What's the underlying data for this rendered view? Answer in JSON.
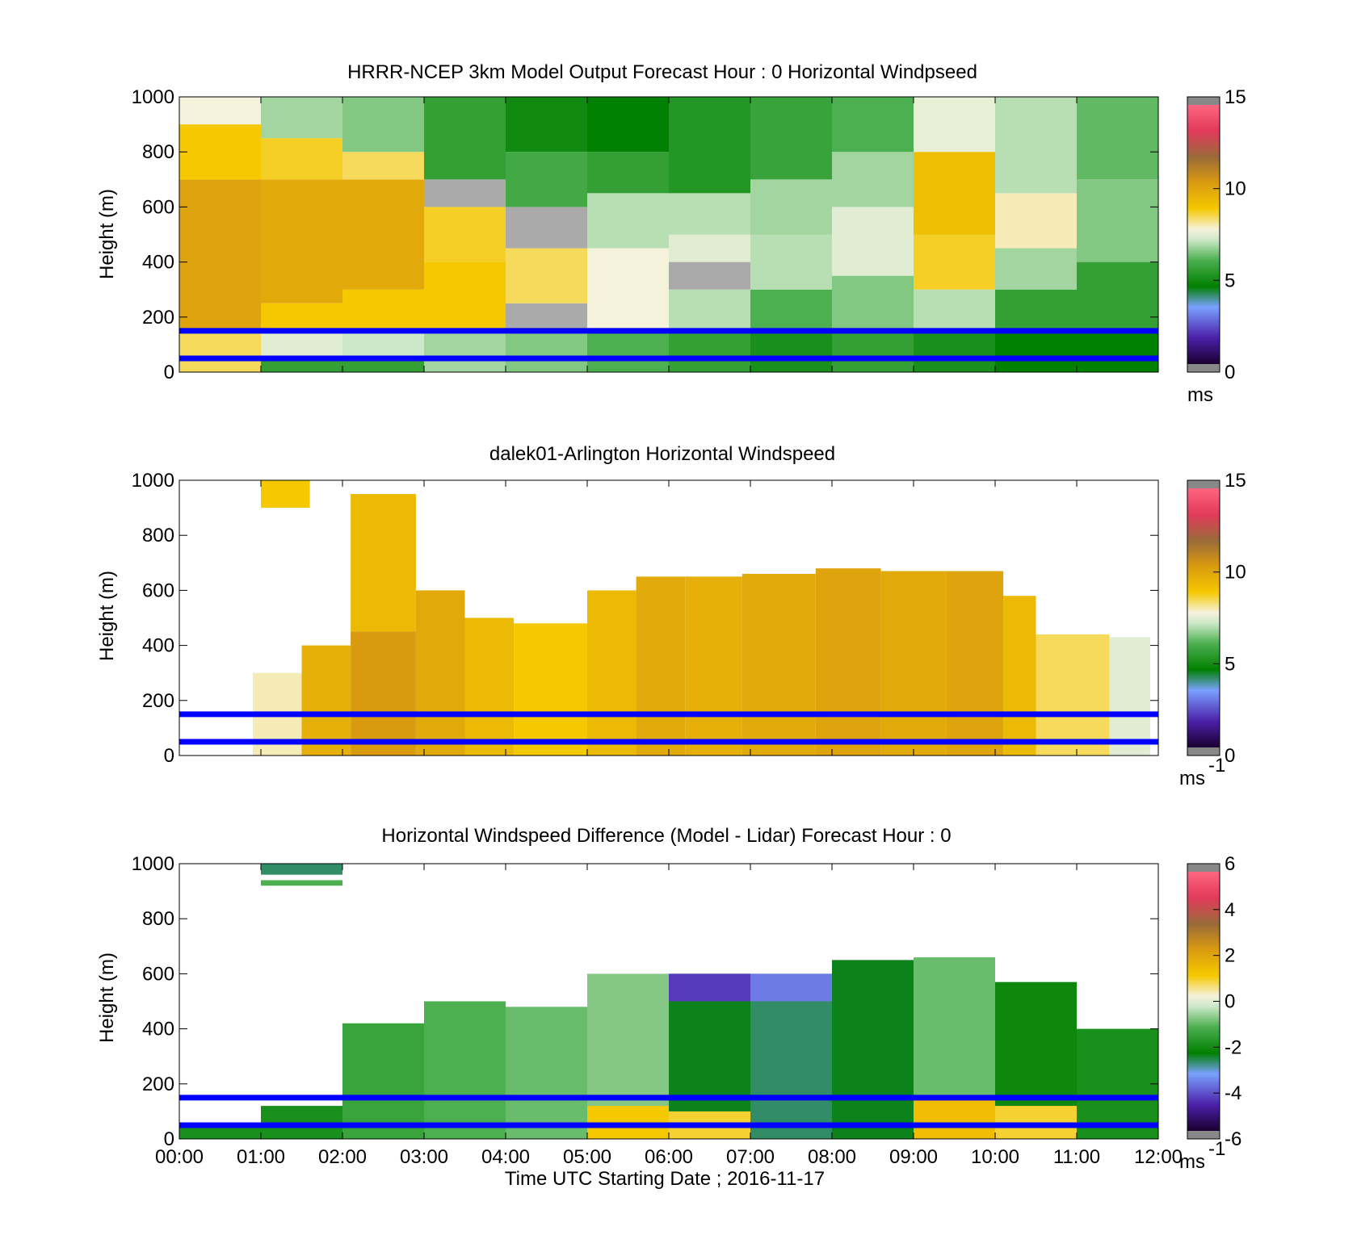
{
  "figure": {
    "xlabel": "Time UTC  Starting Date ; 2016-11-17"
  },
  "chart_data": [
    {
      "type": "heatmap",
      "title": "HRRR-NCEP 3km Model Output   Forecast Hour : 0 Horizontal Windpseed",
      "ylabel": "Height (m)",
      "ylim": [
        0,
        1000
      ],
      "yticks": [
        "0",
        "200",
        "400",
        "600",
        "800",
        "1000"
      ],
      "xlim": [
        0,
        12
      ],
      "x_ticklabels": [],
      "colorbar": {
        "min": 0,
        "max": 15,
        "ticks": [
          "0",
          "5",
          "10",
          "15"
        ],
        "unit": "ms",
        "exponent": "",
        "scale": "speed"
      },
      "reference_lines_m": [
        150,
        50
      ],
      "reference_line_color": "#0000ff",
      "cells": [
        [
          [
            0,
            1,
            0,
            150,
            8.5
          ],
          [
            0,
            1,
            150,
            700,
            10.2
          ],
          [
            0,
            1,
            700,
            900,
            9
          ],
          [
            0,
            1,
            900,
            1000,
            7.8
          ],
          [
            1,
            2,
            0,
            50,
            5.5
          ],
          [
            1,
            2,
            50,
            150,
            7.5
          ],
          [
            1,
            2,
            150,
            250,
            9
          ],
          [
            1,
            2,
            250,
            700,
            10
          ],
          [
            1,
            2,
            700,
            850,
            8.8
          ],
          [
            1,
            2,
            850,
            1000,
            6.8
          ],
          [
            2,
            3,
            0,
            50,
            5.5
          ],
          [
            2,
            3,
            50,
            150,
            7.2
          ],
          [
            2,
            3,
            150,
            300,
            9
          ],
          [
            2,
            3,
            300,
            700,
            10
          ],
          [
            2,
            3,
            700,
            800,
            8.5
          ],
          [
            2,
            3,
            800,
            1000,
            6.5
          ],
          [
            3,
            4,
            0,
            150,
            6.8
          ],
          [
            3,
            4,
            150,
            400,
            9
          ],
          [
            3,
            4,
            400,
            600,
            8.8
          ],
          [
            3,
            4,
            600,
            700,
            0
          ],
          [
            3,
            4,
            700,
            1000,
            5.5
          ],
          [
            4,
            5,
            0,
            150,
            6.5
          ],
          [
            4,
            5,
            150,
            250,
            0
          ],
          [
            4,
            5,
            250,
            450,
            8.5
          ],
          [
            4,
            5,
            450,
            600,
            0
          ],
          [
            4,
            5,
            600,
            800,
            5.8
          ],
          [
            4,
            5,
            800,
            1000,
            4.8
          ],
          [
            5,
            6,
            0,
            150,
            6
          ],
          [
            5,
            6,
            150,
            450,
            7.8
          ],
          [
            5,
            6,
            450,
            650,
            7
          ],
          [
            5,
            6,
            650,
            800,
            5.5
          ],
          [
            5,
            6,
            800,
            1000,
            4.5
          ],
          [
            6,
            7,
            0,
            150,
            5.5
          ],
          [
            6,
            7,
            150,
            300,
            7
          ],
          [
            6,
            7,
            300,
            400,
            0
          ],
          [
            6,
            7,
            400,
            500,
            7.5
          ],
          [
            6,
            7,
            500,
            650,
            7
          ],
          [
            6,
            7,
            650,
            1000,
            5.2
          ],
          [
            7,
            8,
            0,
            150,
            5
          ],
          [
            7,
            8,
            150,
            300,
            6
          ],
          [
            7,
            8,
            300,
            500,
            7
          ],
          [
            7,
            8,
            500,
            700,
            6.8
          ],
          [
            7,
            8,
            700,
            1000,
            5.6
          ],
          [
            8,
            9,
            0,
            150,
            5.5
          ],
          [
            8,
            9,
            150,
            350,
            6.5
          ],
          [
            8,
            9,
            350,
            600,
            7.5
          ],
          [
            8,
            9,
            600,
            800,
            6.8
          ],
          [
            8,
            9,
            800,
            1000,
            6
          ],
          [
            9,
            10,
            0,
            150,
            5
          ],
          [
            9,
            10,
            150,
            300,
            7
          ],
          [
            9,
            10,
            300,
            500,
            8.8
          ],
          [
            9,
            10,
            500,
            800,
            9.3
          ],
          [
            9,
            10,
            800,
            1000,
            7.6
          ],
          [
            10,
            11,
            0,
            150,
            4.5
          ],
          [
            10,
            11,
            150,
            300,
            5.5
          ],
          [
            10,
            11,
            300,
            450,
            6.8
          ],
          [
            10,
            11,
            450,
            650,
            8
          ],
          [
            10,
            11,
            650,
            1000,
            7
          ],
          [
            11,
            12,
            0,
            150,
            4.5
          ],
          [
            11,
            12,
            150,
            400,
            5.5
          ],
          [
            11,
            12,
            400,
            700,
            6.5
          ],
          [
            11,
            12,
            700,
            1000,
            6.2
          ]
        ]
      ]
    },
    {
      "type": "heatmap",
      "title": "dalek01-Arlington  Horizontal Windspeed",
      "ylabel": "Height (m)",
      "ylim": [
        0,
        1000
      ],
      "yticks": [
        "0",
        "200",
        "400",
        "600",
        "800",
        "1000"
      ],
      "xlim": [
        0,
        12
      ],
      "x_ticklabels": [],
      "colorbar": {
        "min": 0,
        "max": 15,
        "ticks": [
          "0",
          "5",
          "10",
          "15"
        ],
        "unit": "ms",
        "exponent": "-1",
        "scale": "speed"
      },
      "reference_lines_m": [
        150,
        50
      ],
      "reference_line_color": "#0000ff",
      "cells": [
        [
          [
            0.9,
            1.5,
            0,
            300,
            8
          ],
          [
            1.5,
            2.1,
            0,
            400,
            9.8
          ],
          [
            2.1,
            2.9,
            0,
            450,
            10.5
          ],
          [
            2.9,
            3.5,
            0,
            600,
            10
          ],
          [
            3.5,
            4.1,
            0,
            500,
            9.5
          ],
          [
            4.1,
            5,
            0,
            480,
            9
          ],
          [
            5,
            5.6,
            0,
            600,
            9.5
          ],
          [
            5.6,
            6.2,
            0,
            650,
            10
          ],
          [
            6.2,
            6.9,
            0,
            650,
            9.8
          ],
          [
            6.9,
            7.8,
            0,
            660,
            10
          ],
          [
            7.8,
            8.6,
            0,
            680,
            10.2
          ],
          [
            8.6,
            9.4,
            0,
            670,
            10
          ],
          [
            9.4,
            10.1,
            0,
            670,
            10.2
          ],
          [
            10.1,
            10.5,
            0,
            580,
            9.5
          ],
          [
            10.5,
            11.4,
            0,
            440,
            8.5
          ],
          [
            11.4,
            11.9,
            0,
            430,
            7.5
          ],
          [
            2.1,
            2.9,
            450,
            950,
            9.5
          ],
          [
            1,
            1.6,
            900,
            1000,
            9
          ]
        ]
      ]
    },
    {
      "type": "heatmap",
      "title": "Horizontal Windspeed Difference (Model - Lidar) Forecast Hour : 0",
      "ylabel": "Height (m)",
      "ylim": [
        0,
        1000
      ],
      "yticks": [
        "0",
        "200",
        "400",
        "600",
        "800",
        "1000"
      ],
      "xlim": [
        0,
        12
      ],
      "x_ticklabels": [
        "00:00",
        "01:00",
        "02:00",
        "03:00",
        "04:00",
        "05:00",
        "06:00",
        "07:00",
        "08:00",
        "09:00",
        "10:00",
        "11:00",
        "12:00"
      ],
      "colorbar": {
        "min": -6,
        "max": 6,
        "ticks": [
          "-6",
          "-4",
          "-2",
          "0",
          "2",
          "4",
          "6"
        ],
        "unit": "ms",
        "exponent": "-1",
        "scale": "diff"
      },
      "reference_lines_m": [
        150,
        50
      ],
      "reference_line_color": "#0000ff",
      "cells": [
        [
          [
            1,
            2,
            960,
            1000,
            -2.8
          ],
          [
            1,
            2,
            920,
            940,
            -1.2
          ],
          [
            0,
            1,
            0,
            60,
            -2
          ],
          [
            1,
            2,
            0,
            120,
            -2
          ],
          [
            2,
            3,
            0,
            420,
            -1.5
          ],
          [
            3,
            4,
            0,
            500,
            -1.2
          ],
          [
            4,
            5,
            0,
            480,
            -1
          ],
          [
            5,
            6,
            0,
            600,
            -0.8
          ],
          [
            6,
            7,
            0,
            600,
            -2.5
          ],
          [
            7,
            8,
            0,
            600,
            -2.8
          ],
          [
            8,
            9,
            0,
            650,
            -2.5
          ],
          [
            9,
            10,
            0,
            660,
            -1
          ],
          [
            10,
            11,
            0,
            570,
            -2.2
          ],
          [
            11,
            12,
            0,
            400,
            -2
          ],
          [
            5,
            6,
            0,
            120,
            1.2
          ],
          [
            6,
            7,
            0,
            100,
            1
          ],
          [
            9,
            10,
            0,
            150,
            1.5
          ],
          [
            10,
            11,
            0,
            120,
            1
          ],
          [
            6,
            7,
            500,
            600,
            -4.5
          ],
          [
            7,
            8,
            500,
            600,
            -3.8
          ]
        ]
      ]
    }
  ]
}
